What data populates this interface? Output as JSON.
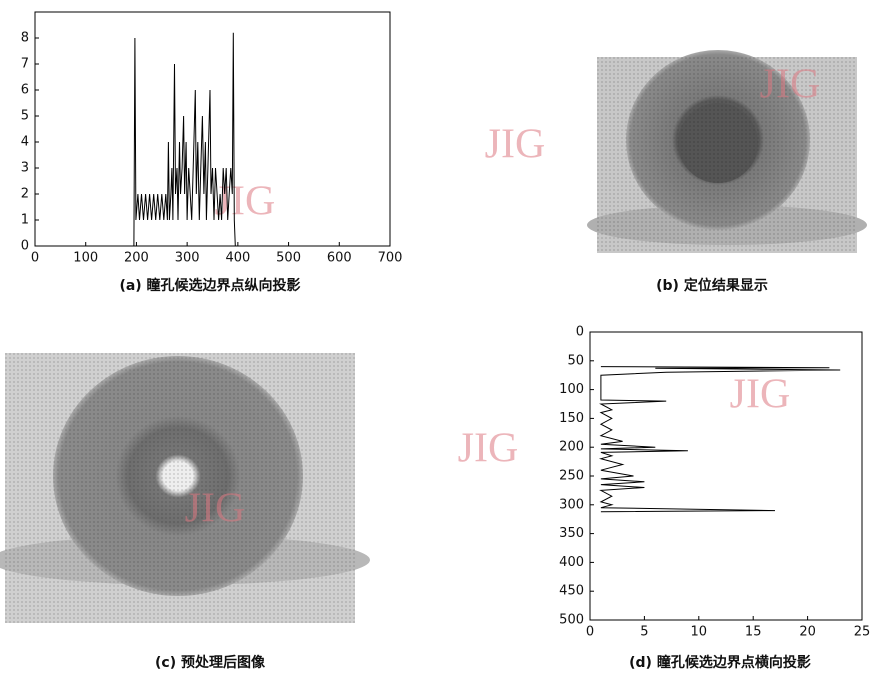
{
  "chart_data": [
    {
      "type": "line",
      "orientation": "vertical",
      "caption": "(a) 瞳孔候选边界点纵向投影",
      "xlim": [
        0,
        700
      ],
      "xticks": [
        0,
        100,
        200,
        300,
        400,
        500,
        600,
        700
      ],
      "ylim": [
        0,
        9
      ],
      "yticks": [
        0,
        1,
        2,
        3,
        4,
        5,
        6,
        7,
        8
      ],
      "color": "#000000",
      "x": [
        195,
        197,
        199,
        203,
        206,
        210,
        214,
        218,
        222,
        226,
        230,
        234,
        238,
        242,
        246,
        250,
        254,
        258,
        261,
        263,
        265,
        268,
        270,
        272,
        275,
        277,
        280,
        282,
        285,
        287,
        290,
        293,
        295,
        298,
        300,
        303,
        306,
        309,
        312,
        316,
        318,
        321,
        324,
        327,
        330,
        333,
        336,
        338,
        341,
        345,
        347,
        350,
        353,
        356,
        359,
        362,
        365,
        368,
        371,
        374,
        377,
        380,
        383,
        386,
        389,
        391,
        393,
        395
      ],
      "values": [
        0,
        8,
        1,
        2,
        1,
        2,
        1,
        2,
        1,
        2,
        1,
        2,
        1,
        2,
        1,
        2,
        1,
        2,
        1,
        4,
        1,
        2,
        3,
        1,
        7,
        2,
        3,
        1,
        4,
        2,
        3,
        5,
        2,
        4,
        1,
        3,
        2,
        1,
        3,
        6,
        2,
        4,
        1,
        3,
        5,
        2,
        4,
        1,
        3,
        6,
        2,
        3,
        1,
        3,
        2,
        1,
        2,
        1,
        3,
        2,
        3,
        1,
        2,
        3,
        2,
        8.2,
        1,
        0
      ]
    },
    {
      "type": "line",
      "orientation": "horizontal",
      "caption": "(d) 瞳孔候选边界点横向投影",
      "xlim": [
        0,
        25
      ],
      "xticks": [
        0,
        5,
        10,
        15,
        20,
        25
      ],
      "ylim": [
        0,
        500
      ],
      "y_inverted": true,
      "yticks": [
        0,
        50,
        100,
        150,
        200,
        250,
        300,
        350,
        400,
        450,
        500
      ],
      "color": "#000000",
      "y": [
        60,
        62,
        63,
        66,
        70,
        75,
        80,
        118,
        120,
        125,
        135,
        140,
        150,
        160,
        170,
        180,
        190,
        195,
        200,
        203,
        206,
        209,
        215,
        220,
        230,
        240,
        250,
        255,
        260,
        265,
        270,
        275,
        285,
        295,
        300,
        305,
        310,
        312
      ],
      "values": [
        1,
        22,
        6,
        23,
        7,
        1,
        1,
        1,
        7,
        1,
        2,
        1,
        2,
        1,
        2,
        1,
        3,
        1,
        6,
        1,
        9,
        1,
        2,
        1,
        3,
        1,
        4,
        1,
        5,
        1,
        5,
        1,
        2,
        1,
        2,
        1,
        17,
        1
      ]
    }
  ],
  "images": [
    {
      "caption": "(b) 定位结果显示"
    },
    {
      "caption": "(c) 预处理后图像"
    }
  ],
  "watermarks": [
    "JIG",
    "JIG",
    "JIG",
    "JIG",
    "JIG",
    "JIG"
  ]
}
